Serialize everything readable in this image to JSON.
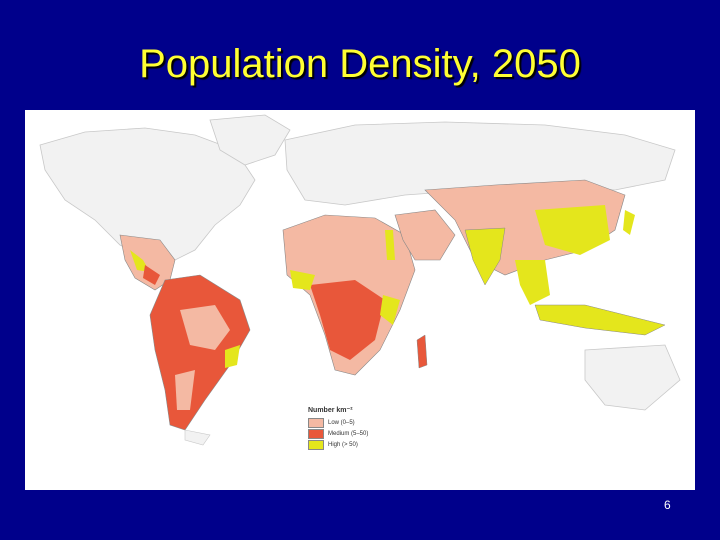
{
  "slide": {
    "title": "Population Density, 2050",
    "page_number": "6"
  },
  "map": {
    "legend": {
      "title": "Number km⁻²",
      "items": [
        {
          "label": "Low (0–5)",
          "color": "#f4b9a3"
        },
        {
          "label": "Medium (5–50)",
          "color": "#e8573a"
        },
        {
          "label": "High (> 50)",
          "color": "#e4e61c"
        }
      ]
    }
  },
  "colors": {
    "background": "#00008b",
    "title": "#ffff33",
    "no_data_land": "#f2f2f2",
    "low": "#f4b9a3",
    "medium": "#e8573a",
    "high": "#e4e61c"
  }
}
